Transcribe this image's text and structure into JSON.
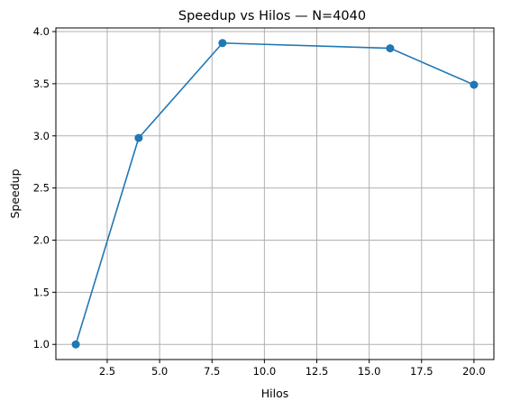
{
  "chart_data": {
    "type": "line",
    "title": "Speedup vs Hilos — N=4040",
    "xlabel": "Hilos",
    "ylabel": "Speedup",
    "x": [
      1,
      4,
      8,
      16,
      20
    ],
    "series": [
      {
        "values": [
          1.0,
          2.98,
          3.89,
          3.84,
          3.49
        ],
        "color": "#1f77b4",
        "marker": "circle"
      }
    ],
    "xlim": [
      0.05,
      20.95
    ],
    "ylim": [
      0.855,
      4.035
    ],
    "xticks": [
      2.5,
      5.0,
      7.5,
      10.0,
      12.5,
      15.0,
      17.5,
      20.0
    ],
    "xtick_labels": [
      "2.5",
      "5.0",
      "7.5",
      "10.0",
      "12.5",
      "15.0",
      "17.5",
      "20.0"
    ],
    "yticks": [
      1.0,
      1.5,
      2.0,
      2.5,
      3.0,
      3.5,
      4.0
    ],
    "ytick_labels": [
      "1.0",
      "1.5",
      "2.0",
      "2.5",
      "3.0",
      "3.5",
      "4.0"
    ],
    "grid": true
  }
}
